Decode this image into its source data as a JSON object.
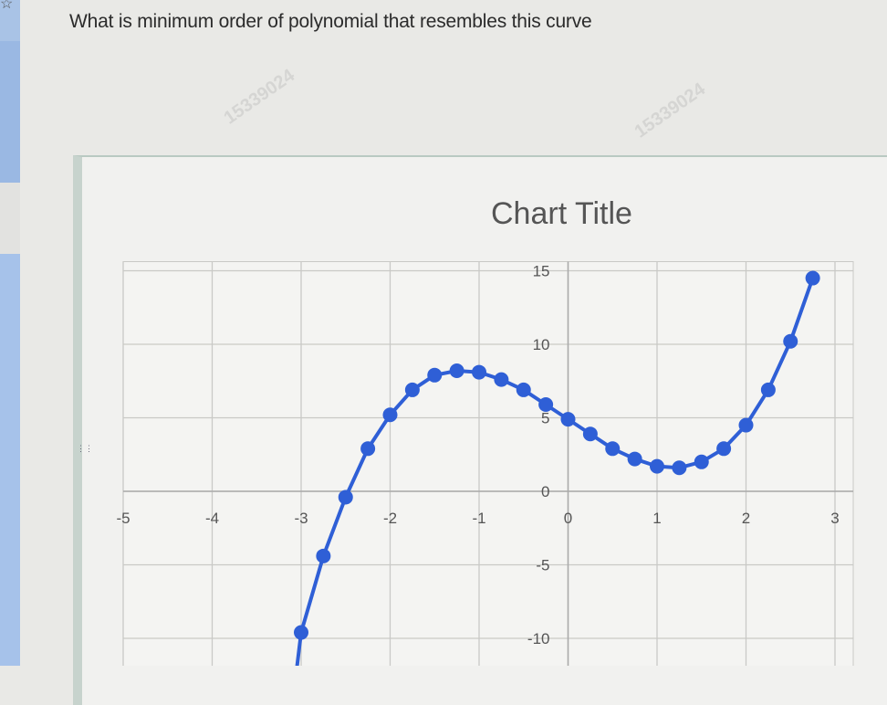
{
  "question": "What is minimum order of polynomial that resembles this curve",
  "watermark": "15339024",
  "colors": {
    "series": "#2f5fd6",
    "grid": "#c9c9c6",
    "text": "#555555"
  },
  "chart_data": {
    "type": "line",
    "title": "Chart Title",
    "xlabel": "",
    "ylabel": "",
    "xlim": [
      -5,
      3
    ],
    "ylim": [
      -15,
      15
    ],
    "grid": true,
    "markers": true,
    "x_ticks": [
      "-5",
      "-4",
      "-3",
      "-2",
      "-1",
      "0",
      "1",
      "2",
      "3"
    ],
    "y_ticks": [
      "15",
      "10",
      "5",
      "0",
      "-5",
      "-10"
    ],
    "x": [
      -3,
      -2.75,
      -2.5,
      -2.25,
      -2,
      -1.75,
      -1.5,
      -1.25,
      -1,
      -0.75,
      -0.5,
      -0.25,
      0,
      0.25,
      0.5,
      0.75,
      1,
      1.25,
      1.5,
      1.75,
      2,
      2.25,
      2.5,
      2.75
    ],
    "y": [
      -9.6,
      -4.4,
      -0.4,
      2.9,
      5.2,
      6.9,
      7.9,
      8.2,
      8.1,
      7.6,
      6.9,
      5.9,
      4.9,
      3.9,
      2.9,
      2.2,
      1.7,
      1.6,
      2.0,
      2.9,
      4.5,
      6.9,
      10.2,
      14.5
    ]
  }
}
